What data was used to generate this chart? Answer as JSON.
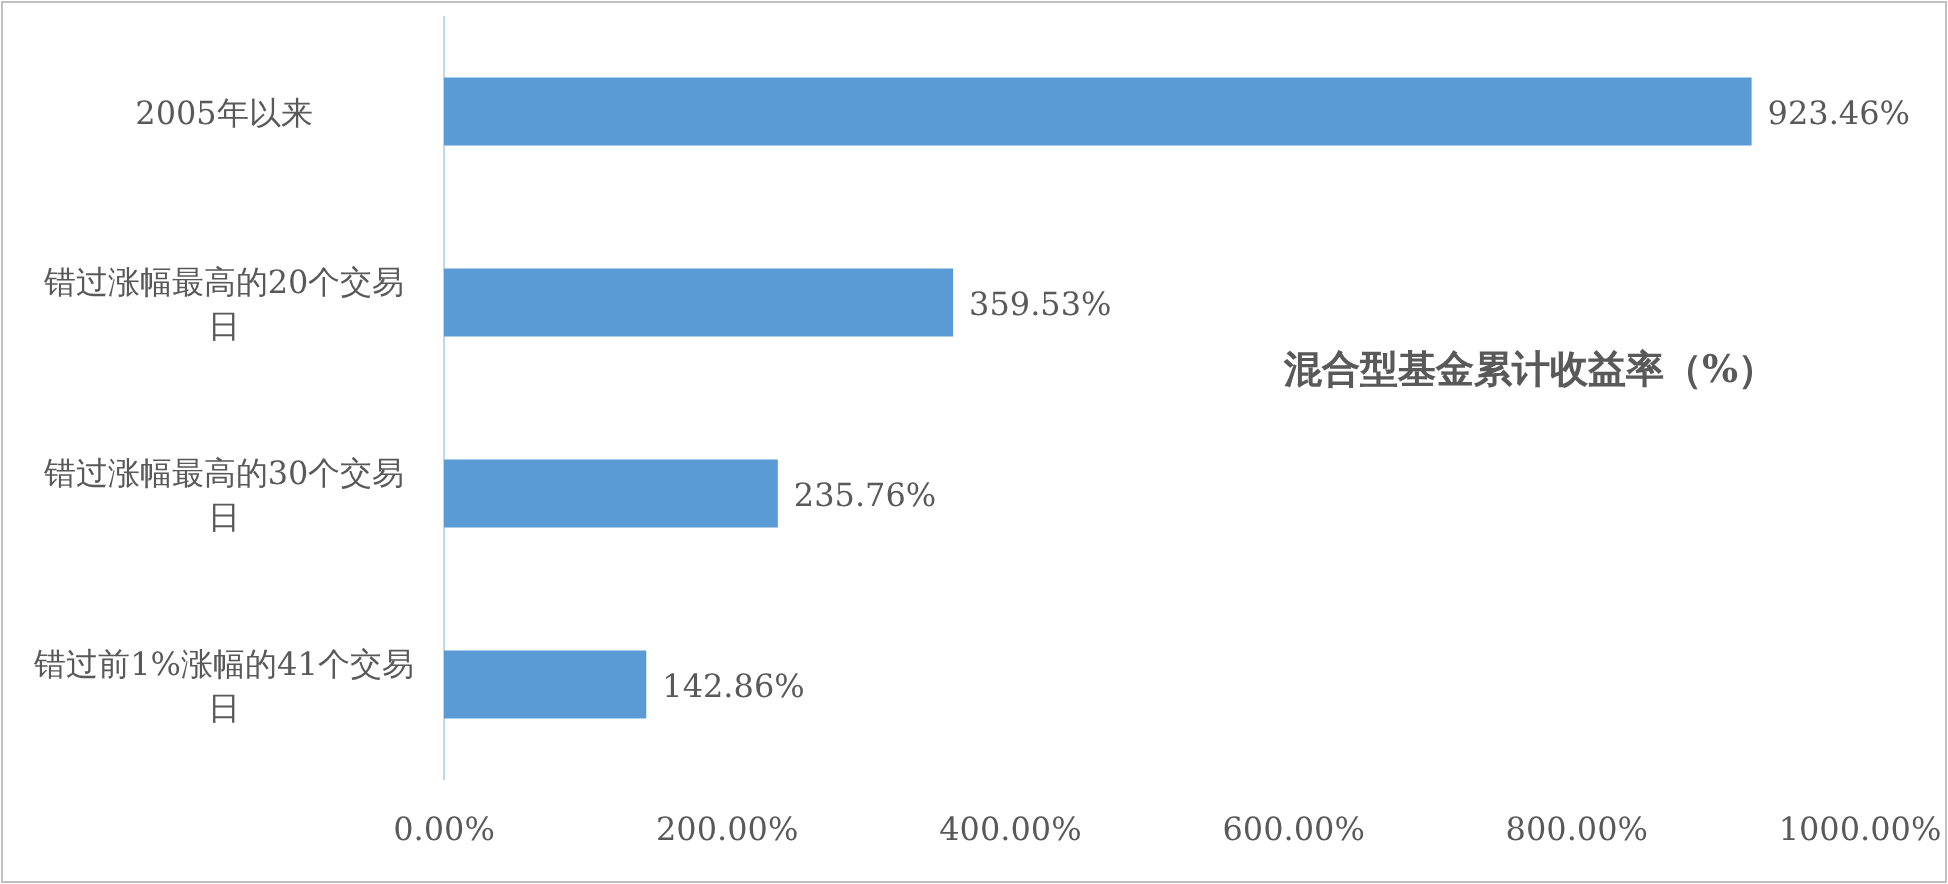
{
  "chart_data": {
    "type": "bar",
    "orientation": "horizontal",
    "title": "混合型基金累计收益率（%）",
    "categories": [
      "2005年以来",
      "错过涨幅最高的20个交易日",
      "错过涨幅最高的30个交易日",
      "错过前1%涨幅的41个交易日"
    ],
    "values": [
      923.46,
      359.53,
      235.76,
      142.86
    ],
    "value_labels": [
      "923.46%",
      "359.53%",
      "235.76%",
      "142.86%"
    ],
    "color": "#5b9bd5",
    "xlim": [
      0,
      1000
    ],
    "xticks": [
      {
        "value": 0,
        "label": "0.00%"
      },
      {
        "value": 200,
        "label": "200.00%"
      },
      {
        "value": 400,
        "label": "400.00%"
      },
      {
        "value": 600,
        "label": "600.00%"
      },
      {
        "value": 800,
        "label": "800.00%"
      },
      {
        "value": 1000,
        "label": "1000.00%"
      }
    ]
  }
}
